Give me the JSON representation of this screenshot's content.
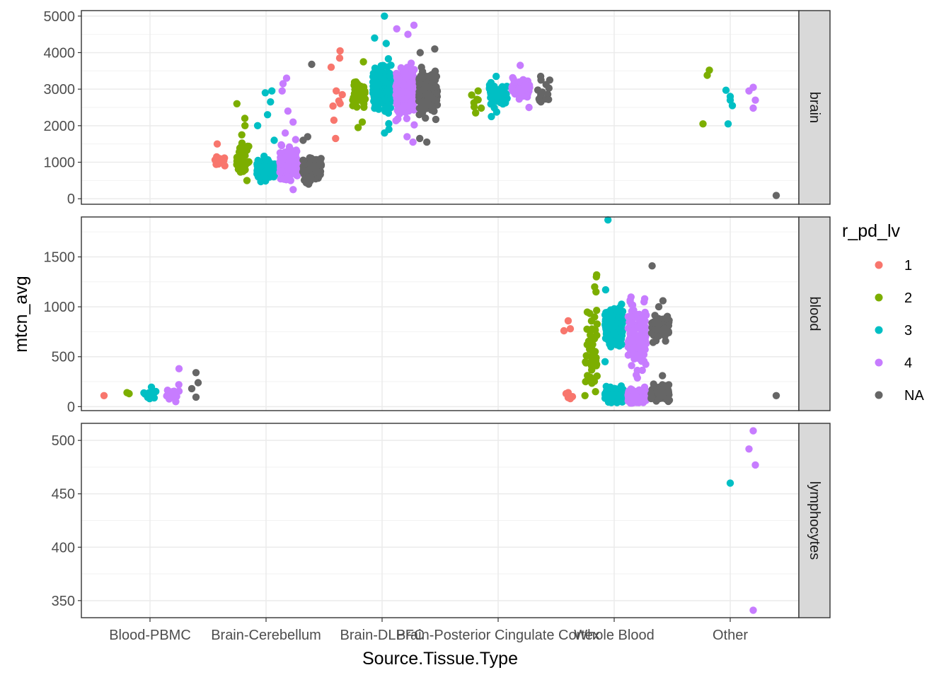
{
  "chart_data": {
    "type": "scatter",
    "xlabel": "Source.Tissue.Type",
    "ylabel": "mtcn_avg",
    "categories": [
      "Blood-PBMC",
      "Brain-Cerebellum",
      "Brain-DLPFC",
      "Brain-Posterior Cingulate Cortex",
      "Whole Blood",
      "Other"
    ],
    "legend": {
      "title": "r_pd_lv",
      "position": "right",
      "entries": [
        {
          "label": "1",
          "color": "#F8766D"
        },
        {
          "label": "2",
          "color": "#7CAE00"
        },
        {
          "label": "3",
          "color": "#00BFC4"
        },
        {
          "label": "4",
          "color": "#C77CFF"
        },
        {
          "label": "NA",
          "color": "#666666"
        }
      ]
    },
    "grid": true,
    "theme": "bw",
    "facets": [
      {
        "strip": "brain",
        "ylim": [
          -150,
          5150
        ],
        "yticks": [
          0,
          1000,
          2000,
          3000,
          4000,
          5000
        ],
        "groups": [
          {
            "cat": 1,
            "series": "1",
            "dist": "spread",
            "n": 12,
            "center": 1000,
            "spread": 150,
            "extra": [
              1500,
              1100
            ]
          },
          {
            "cat": 1,
            "series": "2",
            "dist": "spread",
            "n": 30,
            "center": 1100,
            "spread": 450,
            "extra": [
              2600,
              2200,
              2000,
              1750,
              500
            ]
          },
          {
            "cat": 1,
            "series": "3",
            "dist": "cluster",
            "n": 130,
            "center": 800,
            "spread": 250,
            "extra": [
              2950,
              2900,
              2650,
              2300,
              2000,
              1600
            ]
          },
          {
            "cat": 1,
            "series": "4",
            "dist": "cluster",
            "n": 200,
            "center": 950,
            "spread": 320,
            "extra": [
              3300,
              3150,
              2950,
              2400,
              2100,
              1800,
              250
            ]
          },
          {
            "cat": 1,
            "series": "NA",
            "dist": "cluster",
            "n": 110,
            "center": 800,
            "spread": 250,
            "extra": [
              3680,
              1700,
              1600,
              400
            ]
          },
          {
            "cat": 2,
            "series": "1",
            "dist": "spread",
            "n": 3,
            "center": 2700,
            "spread": 200,
            "extra": [
              4050,
              3850,
              3600,
              2950,
              2850,
              2150,
              1650
            ]
          },
          {
            "cat": 2,
            "series": "2",
            "dist": "spread",
            "n": 50,
            "center": 2850,
            "spread": 350,
            "extra": [
              3750,
              2100,
              1950
            ]
          },
          {
            "cat": 2,
            "series": "3",
            "dist": "cluster",
            "n": 320,
            "center": 3050,
            "spread": 450,
            "extra": [
              5000,
              4400,
              4250,
              1800,
              1900
            ]
          },
          {
            "cat": 2,
            "series": "4",
            "dist": "cluster",
            "n": 380,
            "center": 2950,
            "spread": 500,
            "extra": [
              4750,
              4650,
              4500,
              1550,
              1700
            ]
          },
          {
            "cat": 2,
            "series": "NA",
            "dist": "cluster",
            "n": 190,
            "center": 2950,
            "spread": 450,
            "extra": [
              4100,
              4000,
              1550,
              1650
            ]
          },
          {
            "cat": 3,
            "series": "2",
            "dist": "spread",
            "n": 6,
            "center": 2650,
            "spread": 200,
            "extra": [
              2950,
              2350
            ]
          },
          {
            "cat": 3,
            "series": "3",
            "dist": "cluster",
            "n": 70,
            "center": 2850,
            "spread": 230,
            "extra": [
              3350,
              2250
            ]
          },
          {
            "cat": 3,
            "series": "4",
            "dist": "cluster",
            "n": 90,
            "center": 3050,
            "spread": 200,
            "extra": [
              3650,
              2500
            ]
          },
          {
            "cat": 3,
            "series": "NA",
            "dist": "spread",
            "n": 12,
            "center": 2950,
            "spread": 300,
            "extra": [
              3350,
              2650
            ]
          },
          {
            "cat": 5,
            "series": "2",
            "dist": "fixed",
            "n": 0,
            "center": 0,
            "spread": 0,
            "extra": [
              3380,
              3520,
              2050
            ]
          },
          {
            "cat": 5,
            "series": "3",
            "dist": "fixed",
            "n": 0,
            "center": 0,
            "spread": 0,
            "extra": [
              2800,
              2550,
              2970,
              2700,
              2050
            ]
          },
          {
            "cat": 5,
            "series": "4",
            "dist": "fixed",
            "n": 0,
            "center": 0,
            "spread": 0,
            "extra": [
              3050,
              2700,
              2950,
              2480
            ]
          },
          {
            "cat": 5,
            "series": "NA",
            "dist": "fixed",
            "n": 0,
            "center": 0,
            "spread": 0,
            "extra": [
              90
            ]
          }
        ]
      },
      {
        "strip": "blood",
        "ylim": [
          -40,
          1900
        ],
        "yticks": [
          0,
          500,
          1000,
          1500
        ],
        "groups": [
          {
            "cat": 0,
            "series": "1",
            "dist": "fixed",
            "n": 0,
            "center": 0,
            "spread": 0,
            "extra": [
              110
            ]
          },
          {
            "cat": 0,
            "series": "2",
            "dist": "fixed",
            "n": 0,
            "center": 0,
            "spread": 0,
            "extra": [
              140,
              130
            ]
          },
          {
            "cat": 0,
            "series": "3",
            "dist": "spread",
            "n": 8,
            "center": 120,
            "spread": 40,
            "extra": [
              195,
              80
            ]
          },
          {
            "cat": 0,
            "series": "4",
            "dist": "spread",
            "n": 12,
            "center": 120,
            "spread": 45,
            "extra": [
              380,
              220,
              50
            ]
          },
          {
            "cat": 0,
            "series": "NA",
            "dist": "fixed",
            "n": 0,
            "center": 0,
            "spread": 0,
            "extra": [
              340,
              240,
              180,
              95
            ]
          },
          {
            "cat": 4,
            "series": "1",
            "dist": "fixed",
            "n": 0,
            "center": 0,
            "spread": 0,
            "extra": [
              860,
              780,
              760,
              140,
              130,
              100,
              90,
              80
            ]
          },
          {
            "cat": 4,
            "series": "2",
            "dist": "spread",
            "n": 40,
            "center": 600,
            "spread": 380,
            "extra": [
              1320,
              1300,
              1200,
              1150,
              150,
              110
            ]
          },
          {
            "cat": 4,
            "series": "3",
            "dist": "cluster",
            "n": 150,
            "center": 820,
            "spread": 150,
            "extra": [
              1870,
              1170,
              450
            ]
          },
          {
            "cat": 4,
            "series": "3",
            "dist": "cluster",
            "n": 150,
            "center": 120,
            "spread": 60,
            "extra": [
              40
            ]
          },
          {
            "cat": 4,
            "series": "4",
            "dist": "cluster",
            "n": 120,
            "center": 650,
            "spread": 300,
            "extra": [
              1080,
              1050
            ]
          },
          {
            "cat": 4,
            "series": "4",
            "dist": "cluster",
            "n": 220,
            "center": 100,
            "spread": 55,
            "extra": [
              40
            ]
          },
          {
            "cat": 4,
            "series": "NA",
            "dist": "cluster",
            "n": 60,
            "center": 800,
            "spread": 150,
            "extra": [
              1410,
              1060,
              1000
            ]
          },
          {
            "cat": 4,
            "series": "NA",
            "dist": "cluster",
            "n": 130,
            "center": 140,
            "spread": 60,
            "extra": [
              310
            ]
          },
          {
            "cat": 5,
            "series": "NA",
            "dist": "fixed",
            "n": 0,
            "center": 0,
            "spread": 0,
            "extra": [
              110
            ]
          }
        ]
      },
      {
        "strip": "lymphocytes",
        "ylim": [
          334,
          516
        ],
        "yticks": [
          350,
          400,
          450,
          500
        ],
        "groups": [
          {
            "cat": 5,
            "series": "3",
            "dist": "fixed",
            "n": 0,
            "center": 0,
            "spread": 0,
            "extra": [
              460
            ]
          },
          {
            "cat": 5,
            "series": "4",
            "dist": "fixed",
            "n": 0,
            "center": 0,
            "spread": 0,
            "extra": [
              509,
              477,
              492,
              341
            ]
          }
        ]
      }
    ]
  }
}
